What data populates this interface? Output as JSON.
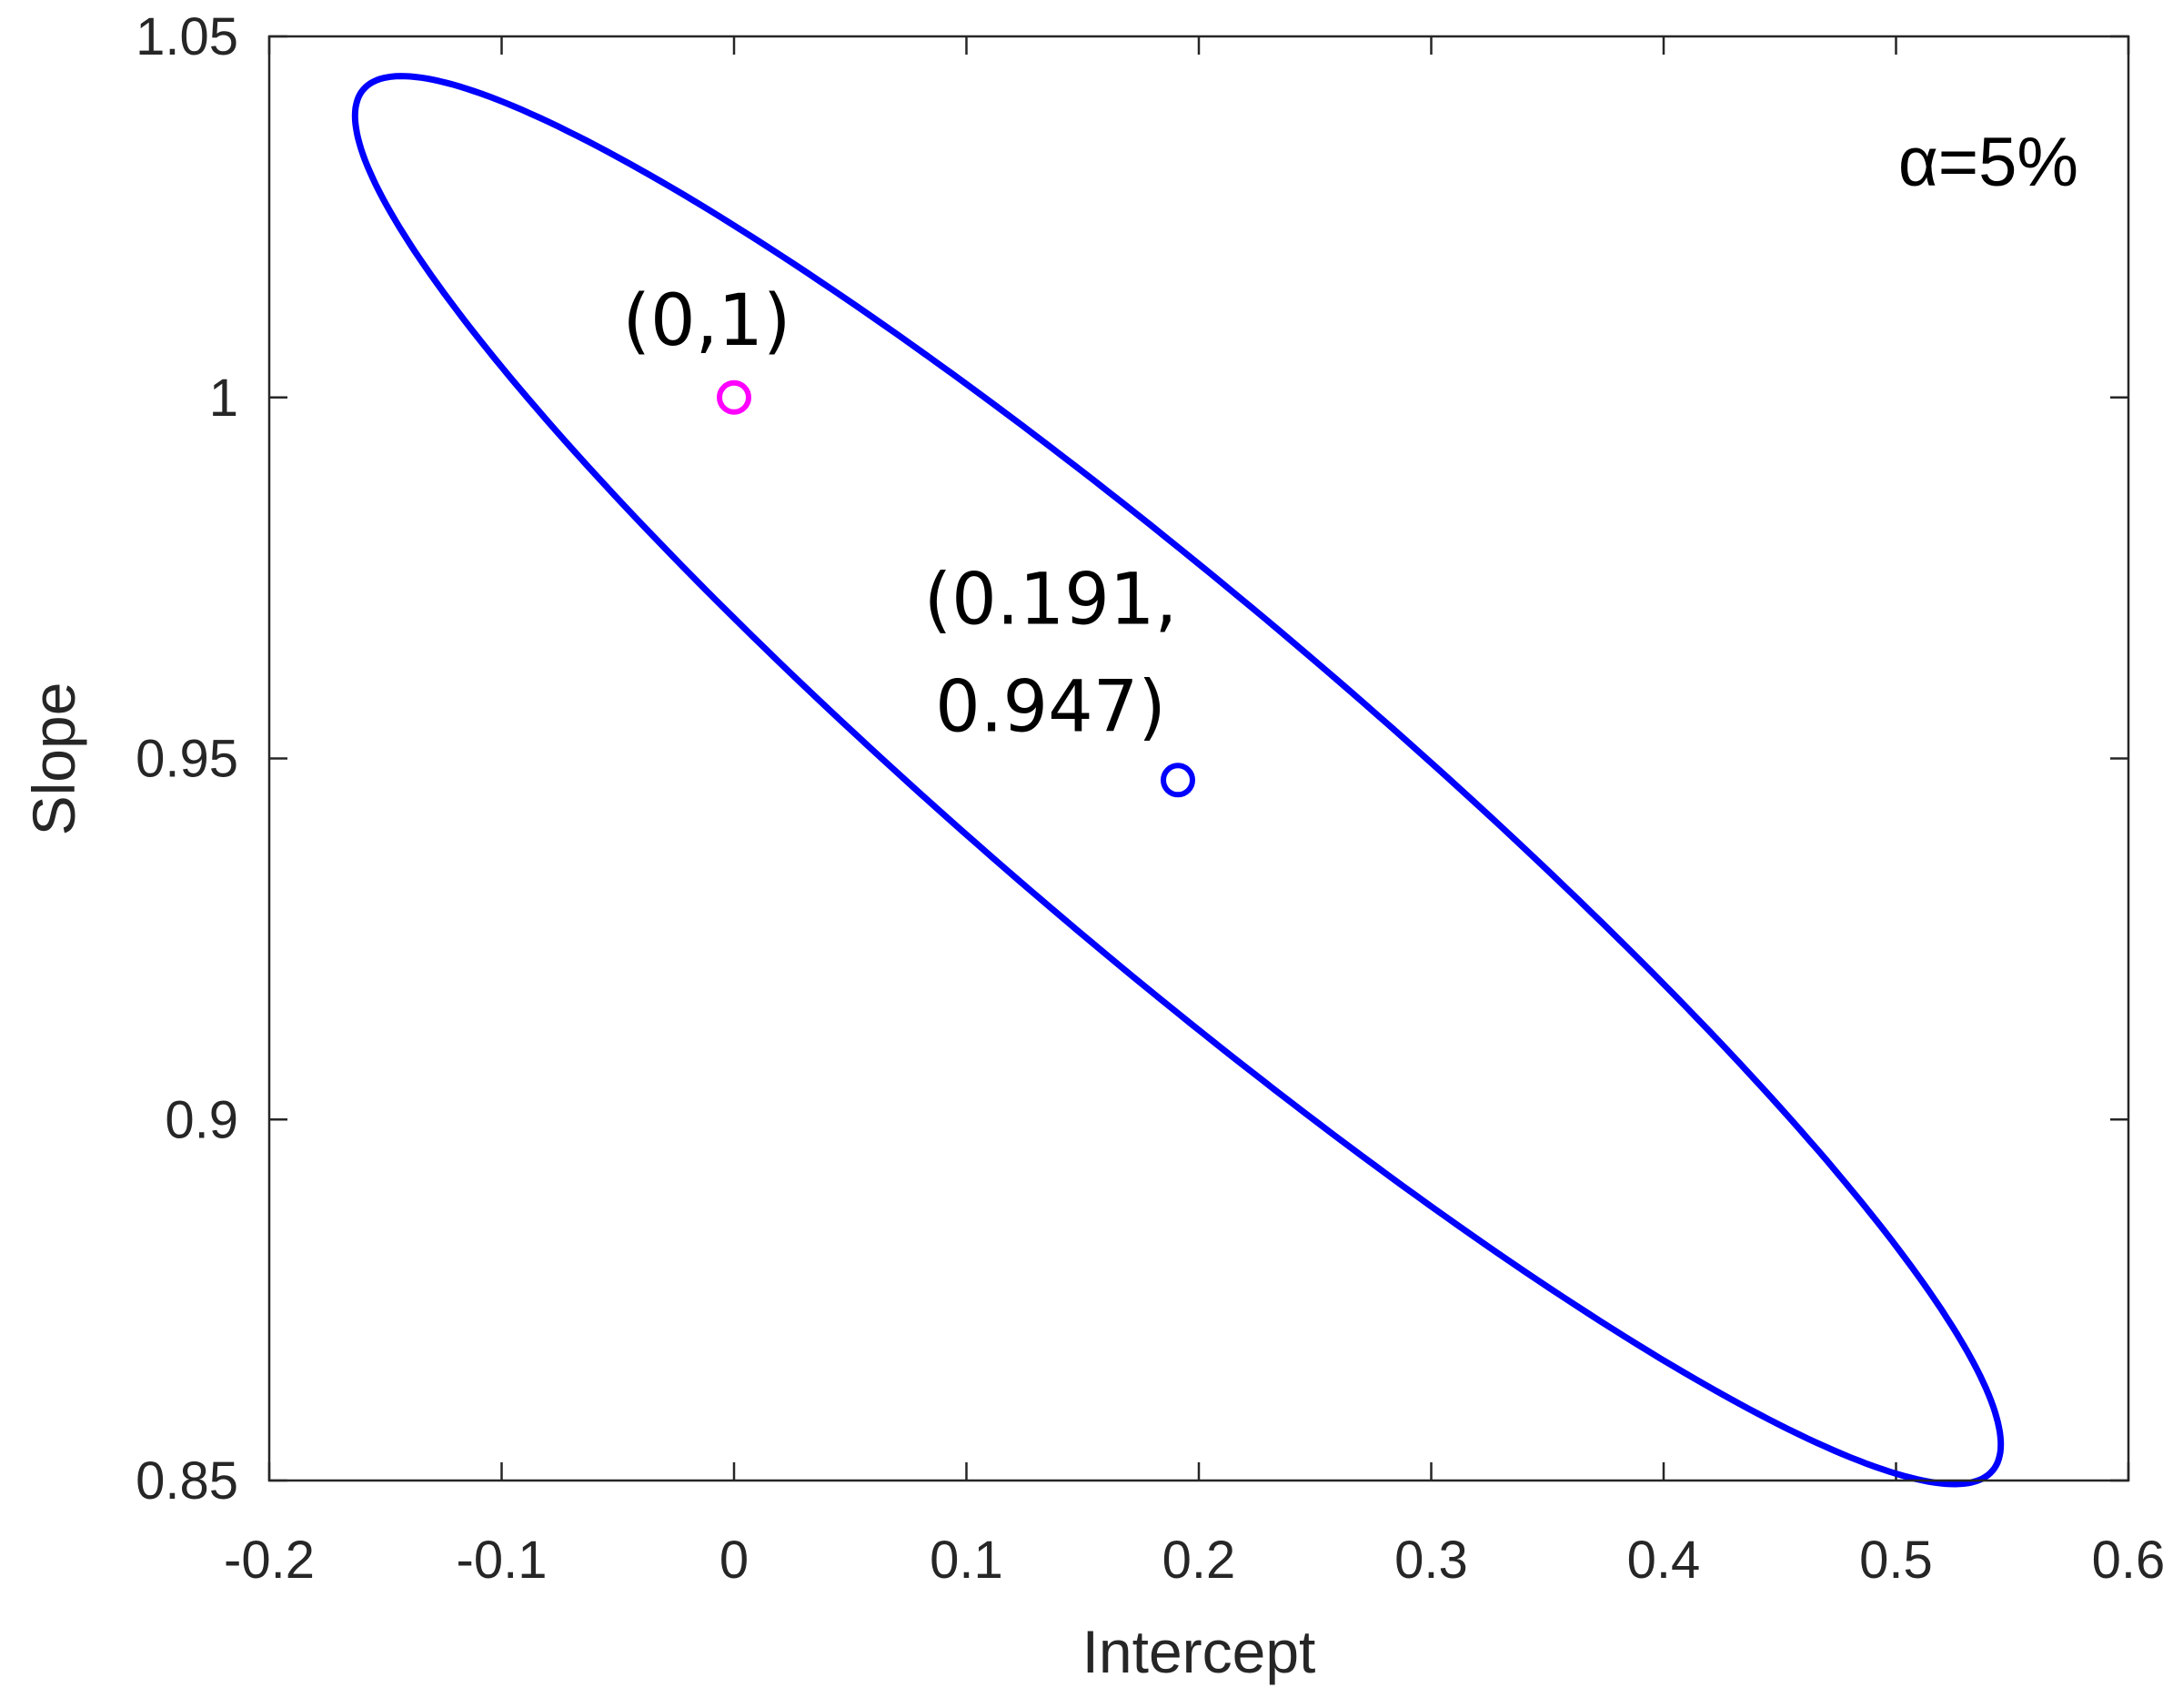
{
  "chart_data": {
    "type": "scatter",
    "xlabel": "Intercept",
    "ylabel": "Slope",
    "xlim": [
      -0.2,
      0.6
    ],
    "ylim": [
      0.85,
      1.05
    ],
    "xticks": [
      -0.2,
      -0.1,
      0,
      0.1,
      0.2,
      0.3,
      0.4,
      0.5,
      0.6
    ],
    "xtick_labels": [
      "-0.2",
      "-0.1",
      "0",
      "0.1",
      "0.2",
      "0.3",
      "0.4",
      "0.5",
      "0.6"
    ],
    "yticks": [
      0.85,
      0.9,
      0.95,
      1.0,
      1.05
    ],
    "ytick_labels": [
      "0.85",
      "0.9",
      "0.95",
      "1",
      "1.05"
    ],
    "grid": false,
    "confidence_ellipse": {
      "color": "#0000ff",
      "center": [
        0.191,
        0.947
      ],
      "extremes": {
        "x_min": [
          -0.141,
          1.039
        ],
        "x_max": [
          0.528,
          0.855
        ],
        "y_max": [
          -0.128,
          1.0445
        ],
        "y_min": [
          0.513,
          0.85
        ]
      },
      "y_at_intercept_0": [
        0.976,
        1.024
      ]
    },
    "points": [
      {
        "x": 0,
        "y": 1,
        "color": "#ff00ff",
        "label": "(0,1)"
      },
      {
        "x": 0.191,
        "y": 0.947,
        "color": "#0000ff",
        "label_lines": [
          "(0.191,",
          "0.947)"
        ]
      }
    ],
    "annotation": "α=5%"
  }
}
